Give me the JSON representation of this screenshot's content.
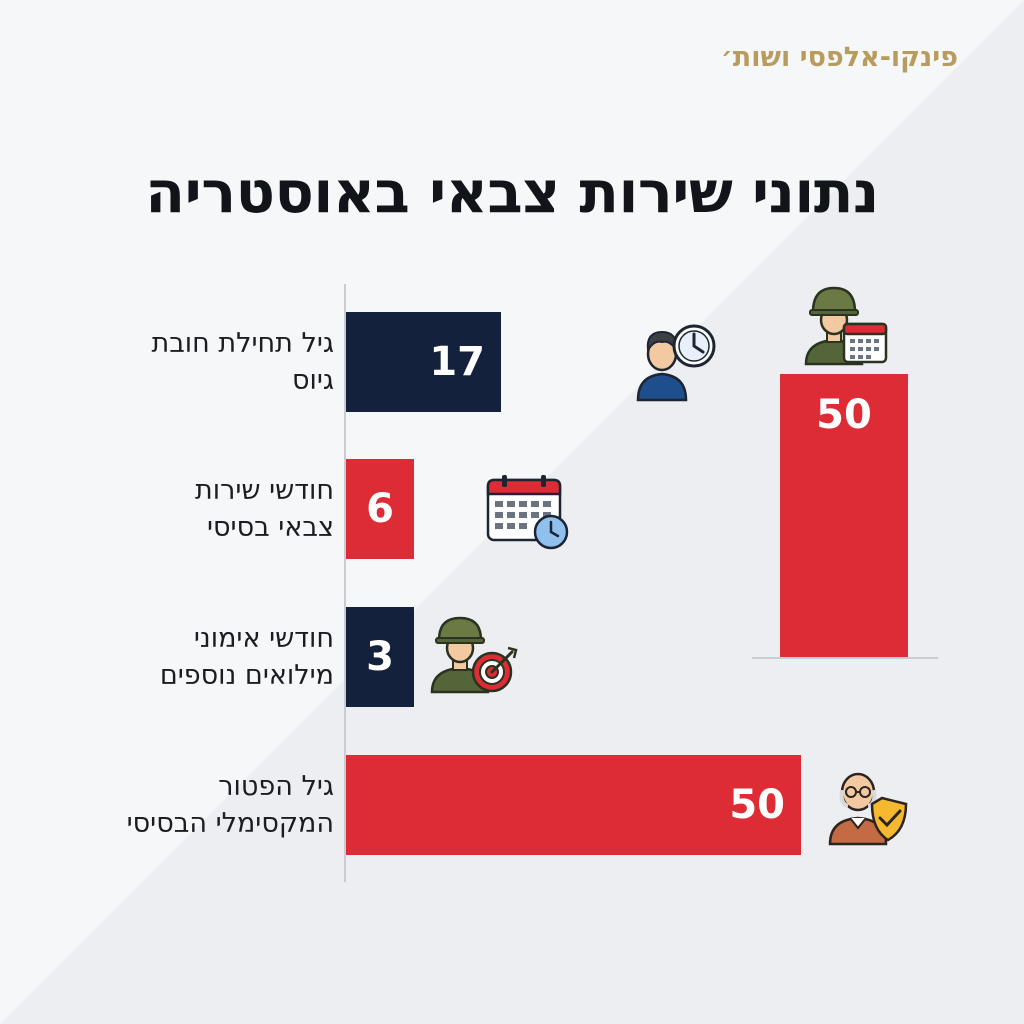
{
  "brand": "פינקו-אלפסי ושות׳",
  "title": "נתוני שירות צבאי באוסטריה",
  "colors": {
    "navy": "#13213d",
    "red": "#dd2c35",
    "gold": "#b89b5e"
  },
  "chart_data": {
    "type": "bar",
    "orientation": "horizontal",
    "title": "נתוני שירות צבאי באוסטריה",
    "xlim": [
      0,
      50
    ],
    "categories": [
      [
        "גיל תחילת חובת",
        "גיוס"
      ],
      [
        "חודשי שירות",
        "צבאי בסיסי"
      ],
      [
        "חודשי אימוני",
        "מילואים נוספים"
      ],
      [
        "גיל הפטור",
        "המקסימלי הבסיסי"
      ]
    ],
    "values": [
      17,
      6,
      3,
      50
    ],
    "bar_colors": [
      "#13213d",
      "#dd2c35",
      "#13213d",
      "#dd2c35"
    ],
    "icons": [
      "person-clock-icon",
      "calendar-clock-icon",
      "soldier-target-icon",
      "elderly-shield-icon"
    ],
    "side_bar": {
      "value": 50,
      "icon": "soldier-calendar-icon",
      "color": "#dd2c35"
    }
  }
}
